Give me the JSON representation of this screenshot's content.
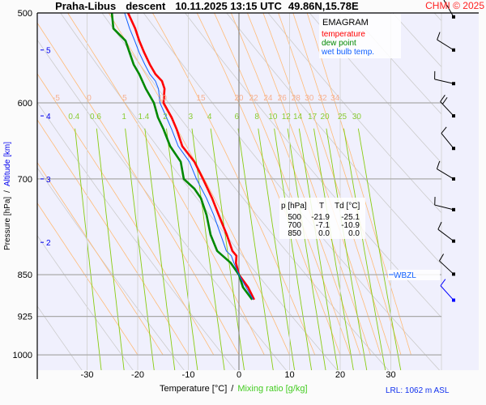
{
  "header": {
    "station": "Praha-Libus",
    "mode": "descent",
    "datetime": "10.11.2025 13:15 UTC",
    "coords": "49.86N,15.78E",
    "copyright": "CHMI © 2025"
  },
  "legend": {
    "title": "EMAGRAM",
    "temperature": "temperature",
    "dew_point": "dew point",
    "wet_bulb": "wet bulb temp."
  },
  "axes": {
    "y_label_pressure": "Pressure [hPa]",
    "y_label_sep": "/",
    "y_label_altitude": "Altitude [km]",
    "x_label_temperature": "Temperature [°C]",
    "x_label_sep": "/",
    "x_label_mixing": "Mixing ratio [g/kg]"
  },
  "table": {
    "headers": [
      "p [hPa]",
      "T",
      "Td [°C]"
    ],
    "rows": [
      [
        "500",
        "-21.9",
        "-25.1"
      ],
      [
        "700",
        "-7.1",
        "-10.9"
      ],
      [
        "850",
        "0.0",
        "0.0"
      ]
    ]
  },
  "wbzl_label": "WBZL",
  "lrl_label": "LRL: 1062 m ASL",
  "colors": {
    "temperature": "#ff0000",
    "dew_point": "#008800",
    "wet_bulb": "#1060ff",
    "moist_adiabat": "#ffbb77",
    "dry_adiabat": "#cccccc",
    "mixing_ratio": "#88cc11",
    "plot_bg": "#f0f0fd",
    "altitude": "#0000ee"
  },
  "chart_data": {
    "type": "line",
    "diagram": "emagram",
    "xlabel": "Temperature [°C] / Mixing ratio [g/kg]",
    "ylabel": "Pressure [hPa] / Altitude [km]",
    "xlim": [
      -40,
      40
    ],
    "ylim_hpa": [
      1030,
      500
    ],
    "y_scale": "log",
    "x_ticks": [
      -30,
      -20,
      -10,
      0,
      10,
      20,
      30
    ],
    "pressure_ticks": [
      500,
      600,
      700,
      850,
      925,
      1000
    ],
    "altitude_ticks": [
      {
        "km": "5",
        "p": 539
      },
      {
        "km": "4",
        "p": 616
      },
      {
        "km": "3",
        "p": 700
      },
      {
        "km": "2",
        "p": 796
      }
    ],
    "moist_adiabat_labels": [
      "-5",
      "0",
      "5",
      "10",
      "15",
      "20",
      "22",
      "24",
      "26",
      "28",
      "30",
      "32",
      "34"
    ],
    "mixing_ratio_labels": [
      "0.4",
      "0.6",
      "1",
      "1.4",
      "2",
      "3",
      "4",
      "6",
      "8",
      "10",
      "12",
      "14",
      "17",
      "20",
      "25",
      "30"
    ],
    "series": [
      {
        "name": "temperature",
        "points": [
          [
            500,
            -21.9
          ],
          [
            516,
            -20.5
          ],
          [
            529,
            -19.7
          ],
          [
            542,
            -18.7
          ],
          [
            555,
            -17.6
          ],
          [
            566,
            -16.5
          ],
          [
            574,
            -15.2
          ],
          [
            583,
            -14.7
          ],
          [
            600,
            -14.9
          ],
          [
            618,
            -13.3
          ],
          [
            633,
            -12.3
          ],
          [
            655,
            -11.2
          ],
          [
            676,
            -8.8
          ],
          [
            700,
            -7.1
          ],
          [
            728,
            -5.3
          ],
          [
            753,
            -4.0
          ],
          [
            784,
            -2.4
          ],
          [
            810,
            -1.3
          ],
          [
            818,
            -0.5
          ],
          [
            830,
            -0.6
          ],
          [
            850,
            0.0
          ],
          [
            872,
            1.8
          ],
          [
            894,
            3.0
          ]
        ]
      },
      {
        "name": "dew point",
        "points": [
          [
            500,
            -25.1
          ],
          [
            516,
            -24.8
          ],
          [
            529,
            -22.4
          ],
          [
            542,
            -21.6
          ],
          [
            555,
            -20.8
          ],
          [
            566,
            -19.7
          ],
          [
            583,
            -18.4
          ],
          [
            600,
            -16.8
          ],
          [
            618,
            -16.0
          ],
          [
            633,
            -14.9
          ],
          [
            655,
            -13.6
          ],
          [
            676,
            -11.5
          ],
          [
            700,
            -10.9
          ],
          [
            714,
            -8.8
          ],
          [
            728,
            -7.5
          ],
          [
            753,
            -6.4
          ],
          [
            784,
            -5.6
          ],
          [
            810,
            -4.3
          ],
          [
            830,
            -1.6
          ],
          [
            850,
            0.0
          ],
          [
            872,
            0.8
          ],
          [
            894,
            2.6
          ]
        ]
      },
      {
        "name": "wet bulb temp.",
        "points": [
          [
            500,
            -22.6
          ],
          [
            516,
            -21.6
          ],
          [
            529,
            -20.6
          ],
          [
            542,
            -19.7
          ],
          [
            555,
            -18.6
          ],
          [
            566,
            -17.6
          ],
          [
            574,
            -16.5
          ],
          [
            583,
            -15.9
          ],
          [
            600,
            -15.6
          ],
          [
            618,
            -14.3
          ],
          [
            633,
            -13.3
          ],
          [
            655,
            -12.0
          ],
          [
            676,
            -9.8
          ],
          [
            700,
            -8.4
          ],
          [
            728,
            -6.4
          ],
          [
            753,
            -5.0
          ],
          [
            784,
            -3.6
          ],
          [
            810,
            -2.5
          ],
          [
            818,
            -1.5
          ],
          [
            830,
            -1.0
          ],
          [
            850,
            0.0
          ],
          [
            872,
            1.4
          ],
          [
            894,
            2.8
          ]
        ]
      }
    ],
    "wbzl_hpa": 850,
    "wind_barbs": [
      {
        "p": 504,
        "dir": 330,
        "kt": 10
      },
      {
        "p": 539,
        "dir": 302,
        "kt": 10
      },
      {
        "p": 577,
        "dir": 283,
        "kt": 10
      },
      {
        "p": 616,
        "dir": 317,
        "kt": 20
      },
      {
        "p": 658,
        "dir": 321,
        "kt": 10
      },
      {
        "p": 700,
        "dir": 301,
        "kt": 10
      },
      {
        "p": 745,
        "dir": 284,
        "kt": 10
      },
      {
        "p": 794,
        "dir": 307,
        "kt": 10
      },
      {
        "p": 849,
        "dir": 313,
        "kt": 10
      },
      {
        "p": 895,
        "dir": 318,
        "kt": 10,
        "highlight": true
      }
    ]
  }
}
